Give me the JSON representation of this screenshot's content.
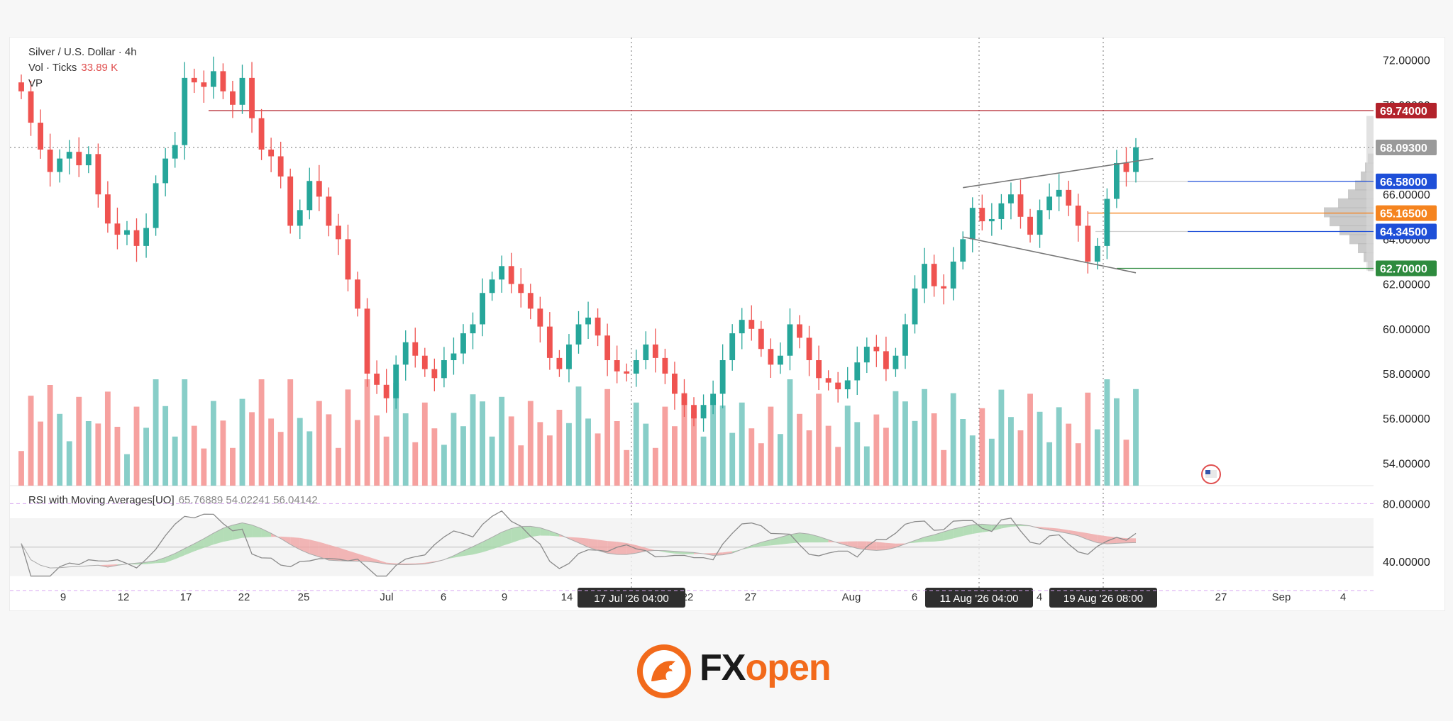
{
  "chart_data": {
    "type": "candlestick",
    "symbol": "Silver / U.S. Dollar · 4h",
    "indicators": {
      "vol_label": "Vol · Ticks",
      "vol_value": "33.89 K",
      "vp_label": "VP",
      "rsi_label": "RSI with Moving Averages[UO]",
      "rsi_values": "65.76889  54.02241  56.04142"
    },
    "y_axis": {
      "ticks": [
        "72.00000",
        "70.00000",
        "66.00000",
        "64.00000",
        "62.00000",
        "60.00000",
        "58.00000",
        "56.00000",
        "54.00000"
      ],
      "range": [
        53,
        73
      ]
    },
    "rsi_axis": {
      "ticks": [
        "80.00000",
        "40.00000"
      ],
      "range": [
        20,
        90
      ]
    },
    "price_labels": [
      {
        "text": "69.74000",
        "value": 69.74,
        "color": "#b2222b"
      },
      {
        "text": "68.09300",
        "value": 68.093,
        "color": "#9a9a9a"
      },
      {
        "text": "66.58000",
        "value": 66.58,
        "color": "#1e4fd8"
      },
      {
        "text": "65.16500",
        "value": 65.165,
        "color": "#f5841f"
      },
      {
        "text": "64.34500",
        "value": 64.345,
        "color": "#1e4fd8"
      },
      {
        "text": "62.70000",
        "value": 62.7,
        "color": "#2e8b3e"
      }
    ],
    "x_axis": {
      "ticks": [
        "9",
        "12",
        "17",
        "22",
        "25",
        "Jul",
        "6",
        "9",
        "14",
        "22",
        "27",
        "Aug",
        "6",
        "4",
        "27",
        "Sep",
        "4"
      ],
      "crosshair_labels": [
        "17 Jul '26   04:00",
        "11 Aug '26   04:00",
        "19 Aug '26   08:00"
      ]
    },
    "price_path": [
      70.6,
      69.2,
      68.0,
      67.0,
      67.6,
      67.9,
      67.3,
      67.8,
      66.0,
      64.7,
      64.2,
      64.4,
      63.7,
      64.5,
      66.5,
      67.6,
      68.2,
      71.2,
      71.0,
      70.8,
      71.5,
      70.6,
      70.0,
      71.2,
      69.4,
      68.0,
      67.7,
      66.8,
      64.6,
      65.3,
      66.6,
      65.9,
      64.6,
      64.0,
      62.2,
      60.9,
      58.0,
      57.5,
      56.9,
      58.4,
      59.4,
      58.8,
      58.2,
      57.8,
      58.6,
      58.9,
      59.8,
      60.2,
      61.6,
      62.2,
      62.8,
      62.0,
      61.6,
      60.9,
      60.1,
      58.7,
      58.2,
      59.3,
      60.2,
      60.5,
      59.7,
      58.6,
      58.1,
      58.0,
      58.6,
      59.3,
      58.7,
      58.0,
      57.1,
      56.6,
      56.0,
      56.6,
      57.1,
      58.6,
      59.8,
      60.4,
      60.0,
      59.1,
      58.4,
      58.8,
      60.2,
      59.6,
      58.6,
      57.8,
      57.6,
      57.3,
      57.7,
      58.5,
      59.2,
      59.0,
      58.2,
      58.8,
      60.2,
      61.8,
      62.9,
      61.9,
      61.8,
      63.0,
      64.0,
      65.4,
      64.8,
      64.9,
      65.6,
      66.0,
      65.0,
      64.2,
      65.3,
      65.9,
      66.2,
      65.5,
      64.6,
      63.0,
      63.7,
      65.8,
      67.4,
      67.0,
      68.1
    ]
  },
  "brand": {
    "fx": "FX",
    "open": "open"
  }
}
